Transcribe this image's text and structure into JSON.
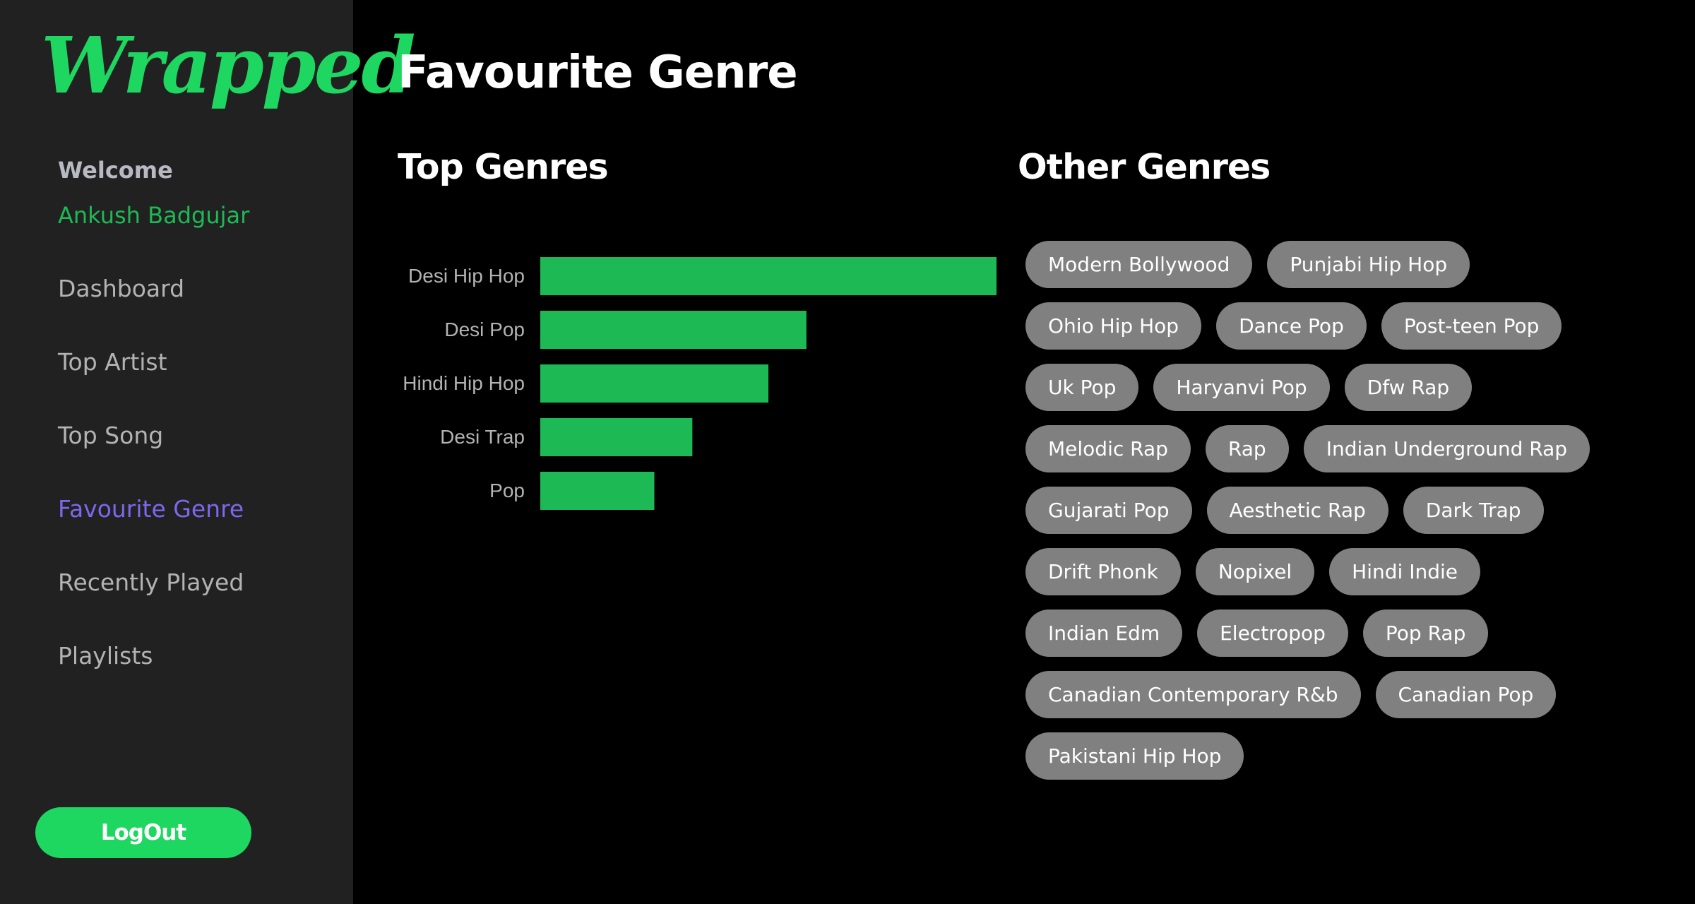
{
  "sidebar": {
    "logo": "Wrapped",
    "welcome": "Welcome",
    "username": "Ankush Badgujar",
    "nav": [
      "Dashboard",
      "Top Artist",
      "Top Song",
      "Favourite Genre",
      "Recently Played",
      "Playlists"
    ],
    "active": "Favourite Genre",
    "logout_label": "LogOut"
  },
  "main": {
    "title": "Favourite Genre",
    "top_genres_title": "Top Genres",
    "other_genres_title": "Other Genres",
    "other_genres": [
      "Modern Bollywood",
      "Punjabi Hip Hop",
      "Ohio Hip Hop",
      "Dance Pop",
      "Post-teen Pop",
      "Uk Pop",
      "Haryanvi Pop",
      "Dfw Rap",
      "Melodic Rap",
      "Rap",
      "Indian Underground Rap",
      "Gujarati Pop",
      "Aesthetic Rap",
      "Dark Trap",
      "Drift Phonk",
      "Nopixel",
      "Hindi Indie",
      "Indian Edm",
      "Electropop",
      "Pop Rap",
      "Canadian Contemporary R&b",
      "Canadian Pop",
      "Pakistani Hip Hop"
    ]
  },
  "colors": {
    "accent": "#1ed760",
    "bar": "#1db954",
    "active_nav": "#7b68ee",
    "sidebar_bg": "#212121",
    "tag_bg": "#808080"
  },
  "chart_data": {
    "type": "bar",
    "orientation": "horizontal",
    "categories": [
      "Desi Hip Hop",
      "Desi Pop",
      "Hindi Hip Hop",
      "Desi Trap",
      "Pop"
    ],
    "values": [
      12,
      7,
      6,
      4,
      3
    ],
    "xlim": [
      0,
      12
    ],
    "grid": false
  }
}
